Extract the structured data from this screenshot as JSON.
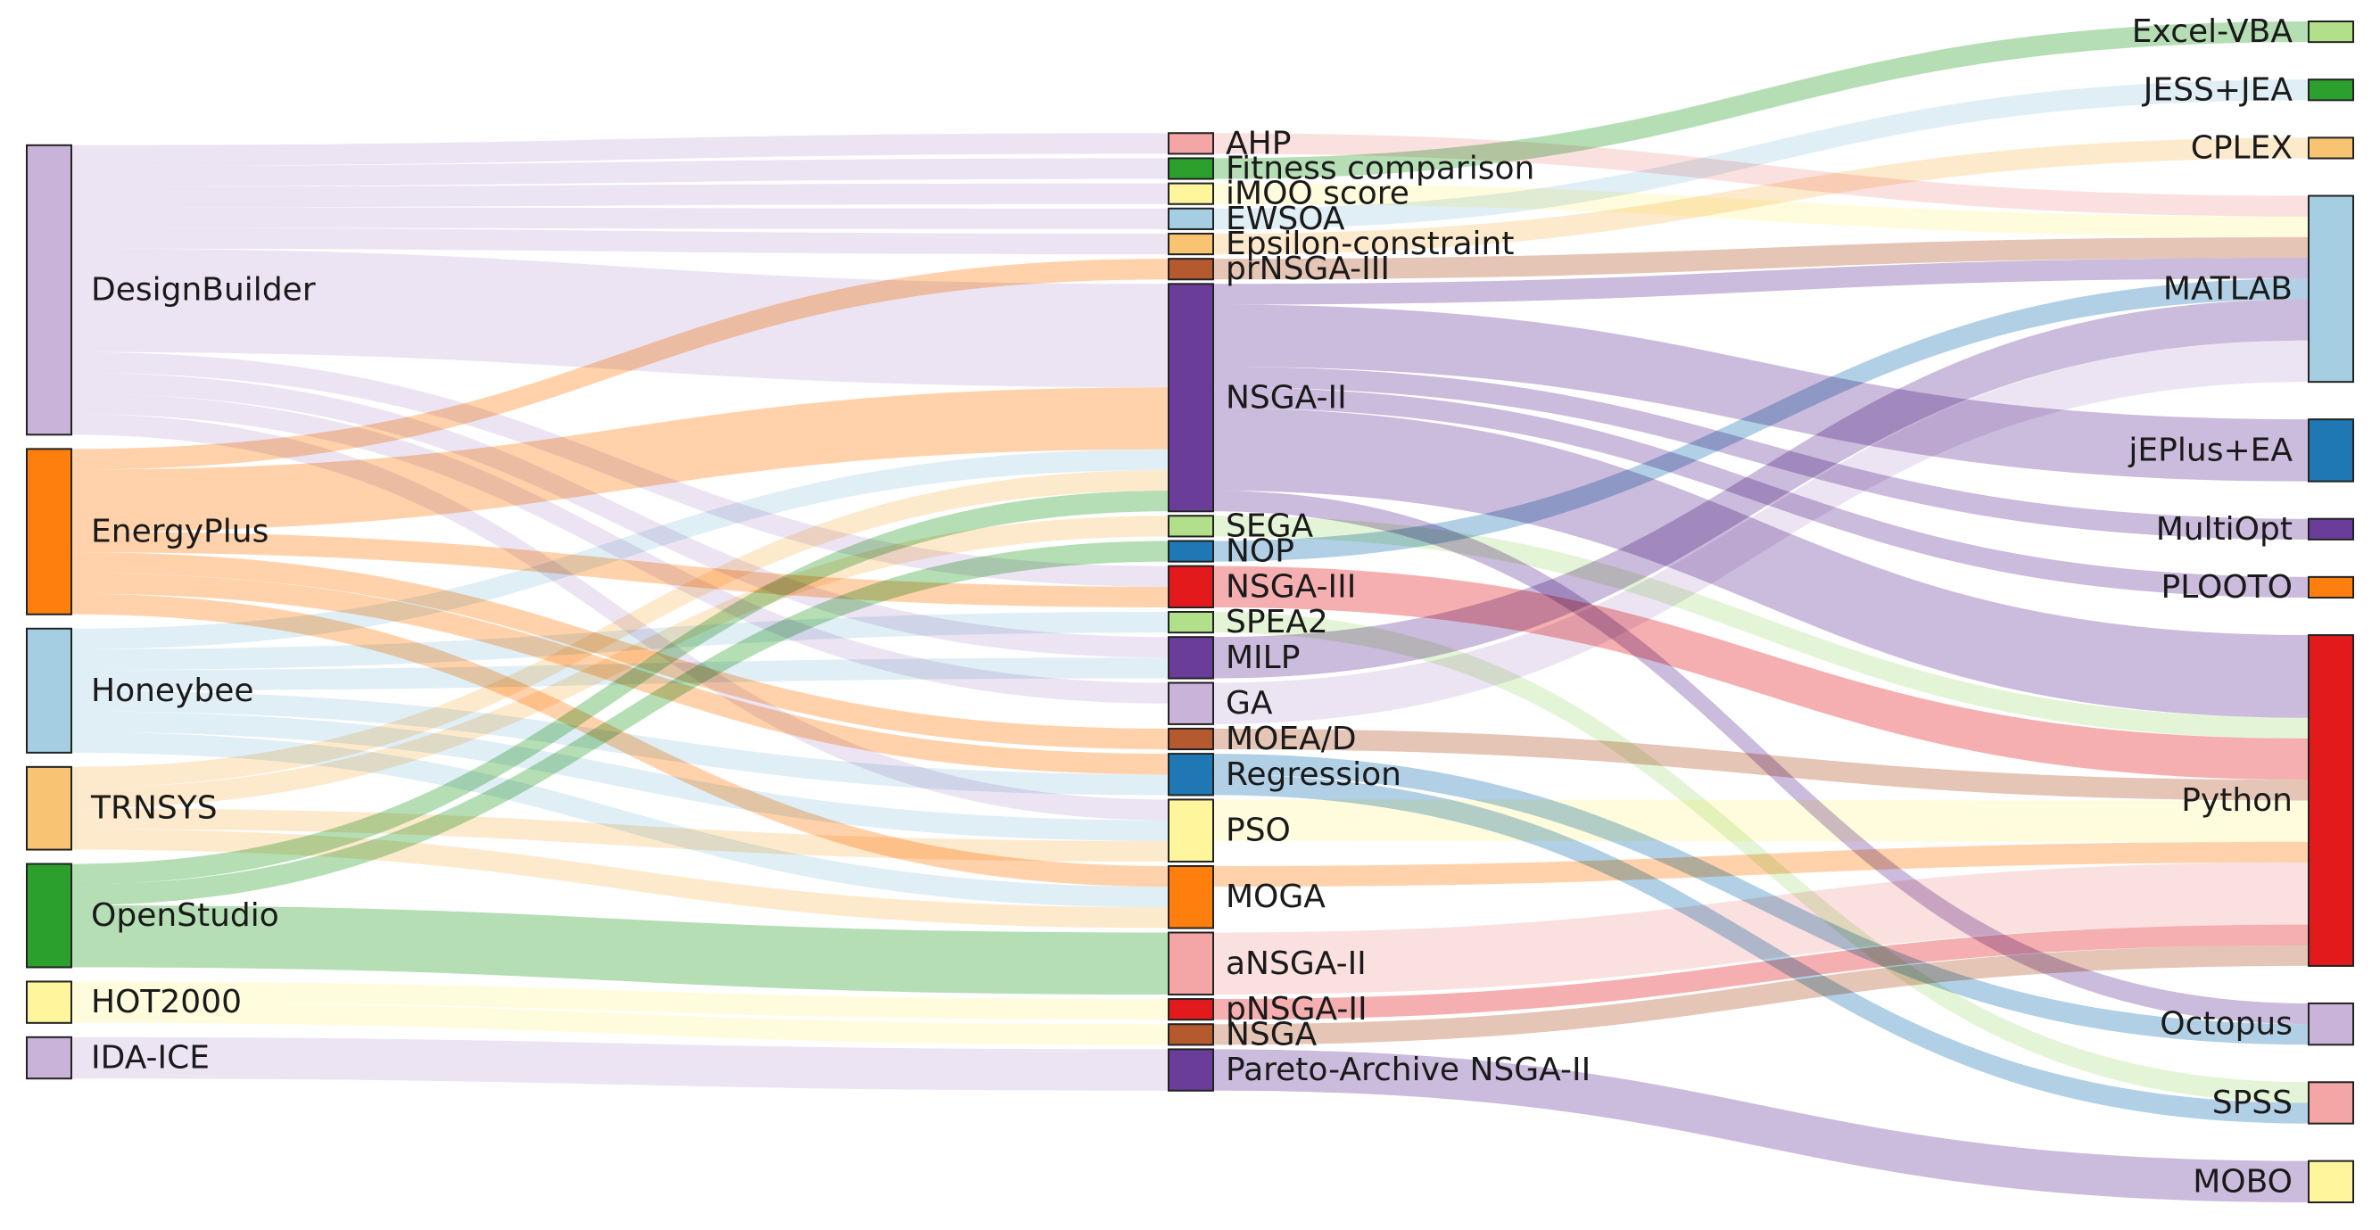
{
  "chart_data": {
    "type": "sankey",
    "columns": [
      {
        "name": "simulation-tools",
        "nodes": [
          {
            "id": "DesignBuilder",
            "label": "DesignBuilder",
            "color": "#c9b3d9"
          },
          {
            "id": "EnergyPlus",
            "label": "EnergyPlus",
            "color": "#ff7f0e"
          },
          {
            "id": "Honeybee",
            "label": "Honeybee",
            "color": "#a6cee3"
          },
          {
            "id": "TRNSYS",
            "label": "TRNSYS",
            "color": "#f8c471"
          },
          {
            "id": "OpenStudio",
            "label": "OpenStudio",
            "color": "#2ca02c"
          },
          {
            "id": "HOT2000",
            "label": "HOT2000",
            "color": "#fff59d"
          },
          {
            "id": "IDA-ICE",
            "label": "IDA-ICE",
            "color": "#c9b3d9"
          }
        ]
      },
      {
        "name": "optimization-methods",
        "nodes": [
          {
            "id": "AHP",
            "label": "AHP",
            "color": "#f4a6a6"
          },
          {
            "id": "Fitness comparison",
            "label": "Fitness comparison",
            "color": "#2ca02c"
          },
          {
            "id": "iMOO score",
            "label": "iMOO score",
            "color": "#fff59d"
          },
          {
            "id": "EWSOA",
            "label": "EWSOA",
            "color": "#a6cee3"
          },
          {
            "id": "Epsilon-constraint",
            "label": "Epsilon-constraint",
            "color": "#f8c471"
          },
          {
            "id": "prNSGA-III",
            "label": "prNSGA-III",
            "color": "#b5592e"
          },
          {
            "id": "NSGA-II",
            "label": "NSGA-II",
            "color": "#6a3d9a"
          },
          {
            "id": "SEGA",
            "label": "SEGA",
            "color": "#b2df8a"
          },
          {
            "id": "NOP",
            "label": "NOP",
            "color": "#1f78b4"
          },
          {
            "id": "NSGA-III",
            "label": "NSGA-III",
            "color": "#e31a1c"
          },
          {
            "id": "SPEA2",
            "label": "SPEA2",
            "color": "#b2df8a"
          },
          {
            "id": "MILP",
            "label": "MILP",
            "color": "#6a3d9a"
          },
          {
            "id": "GA",
            "label": "GA",
            "color": "#c9b3d9"
          },
          {
            "id": "MOEA/D",
            "label": "MOEA/D",
            "color": "#b5592e"
          },
          {
            "id": "Regression",
            "label": "Regression",
            "color": "#1f78b4"
          },
          {
            "id": "PSO",
            "label": "PSO",
            "color": "#fff59d"
          },
          {
            "id": "MOGA",
            "label": "MOGA",
            "color": "#ff7f0e"
          },
          {
            "id": "aNSGA-II",
            "label": "aNSGA-II",
            "color": "#f4a6a6"
          },
          {
            "id": "pNSGA-II",
            "label": "pNSGA-II",
            "color": "#e31a1c"
          },
          {
            "id": "NSGA",
            "label": "NSGA",
            "color": "#b5592e"
          },
          {
            "id": "Pareto-Archive NSGA-II",
            "label": "Pareto-Archive NSGA-II",
            "color": "#6a3d9a"
          }
        ]
      },
      {
        "name": "platforms",
        "nodes": [
          {
            "id": "Excel-VBA",
            "label": "Excel-VBA",
            "color": "#b2df8a"
          },
          {
            "id": "JESS+JEA",
            "label": "JESS+JEA",
            "color": "#2ca02c"
          },
          {
            "id": "CPLEX",
            "label": "CPLEX",
            "color": "#f8c471"
          },
          {
            "id": "MATLAB",
            "label": "MATLAB",
            "color": "#a6cee3"
          },
          {
            "id": "jEPlus+EA",
            "label": "jEPlus+EA",
            "color": "#1f78b4"
          },
          {
            "id": "MultiOpt",
            "label": "MultiOpt",
            "color": "#6a3d9a"
          },
          {
            "id": "PLOOTO",
            "label": "PLOOTO",
            "color": "#ff7f0e"
          },
          {
            "id": "Python",
            "label": "Python",
            "color": "#e31a1c"
          },
          {
            "id": "Octopus",
            "label": "Octopus",
            "color": "#c9b3d9"
          },
          {
            "id": "SPSS",
            "label": "SPSS",
            "color": "#f4a6a6"
          },
          {
            "id": "MOBO",
            "label": "MOBO",
            "color": "#fff59d"
          }
        ]
      }
    ],
    "links": [
      {
        "source": "DesignBuilder",
        "target": "AHP",
        "value": 1
      },
      {
        "source": "DesignBuilder",
        "target": "Fitness comparison",
        "value": 1
      },
      {
        "source": "DesignBuilder",
        "target": "iMOO score",
        "value": 1
      },
      {
        "source": "DesignBuilder",
        "target": "EWSOA",
        "value": 1
      },
      {
        "source": "DesignBuilder",
        "target": "Epsilon-constraint",
        "value": 1
      },
      {
        "source": "DesignBuilder",
        "target": "NSGA-II",
        "value": 5
      },
      {
        "source": "DesignBuilder",
        "target": "NSGA-III",
        "value": 1
      },
      {
        "source": "DesignBuilder",
        "target": "MILP",
        "value": 1
      },
      {
        "source": "DesignBuilder",
        "target": "GA",
        "value": 1
      },
      {
        "source": "DesignBuilder",
        "target": "PSO",
        "value": 1
      },
      {
        "source": "EnergyPlus",
        "target": "prNSGA-III",
        "value": 1
      },
      {
        "source": "EnergyPlus",
        "target": "NSGA-II",
        "value": 3
      },
      {
        "source": "EnergyPlus",
        "target": "NSGA-III",
        "value": 1
      },
      {
        "source": "EnergyPlus",
        "target": "MOEA/D",
        "value": 1
      },
      {
        "source": "EnergyPlus",
        "target": "Regression",
        "value": 1
      },
      {
        "source": "EnergyPlus",
        "target": "MOGA",
        "value": 1
      },
      {
        "source": "Honeybee",
        "target": "NSGA-II",
        "value": 1
      },
      {
        "source": "Honeybee",
        "target": "SPEA2",
        "value": 1
      },
      {
        "source": "Honeybee",
        "target": "MILP",
        "value": 1
      },
      {
        "source": "Honeybee",
        "target": "Regression",
        "value": 1
      },
      {
        "source": "Honeybee",
        "target": "PSO",
        "value": 1
      },
      {
        "source": "Honeybee",
        "target": "MOGA",
        "value": 1
      },
      {
        "source": "TRNSYS",
        "target": "NSGA-II",
        "value": 1
      },
      {
        "source": "TRNSYS",
        "target": "SEGA",
        "value": 1
      },
      {
        "source": "TRNSYS",
        "target": "PSO",
        "value": 1
      },
      {
        "source": "TRNSYS",
        "target": "MOGA",
        "value": 1
      },
      {
        "source": "OpenStudio",
        "target": "NSGA-II",
        "value": 1
      },
      {
        "source": "OpenStudio",
        "target": "NOP",
        "value": 1
      },
      {
        "source": "OpenStudio",
        "target": "aNSGA-II",
        "value": 3
      },
      {
        "source": "HOT2000",
        "target": "pNSGA-II",
        "value": 1
      },
      {
        "source": "HOT2000",
        "target": "NSGA",
        "value": 1
      },
      {
        "source": "IDA-ICE",
        "target": "Pareto-Archive NSGA-II",
        "value": 2
      },
      {
        "source": "AHP",
        "target": "MATLAB",
        "value": 1
      },
      {
        "source": "Fitness comparison",
        "target": "Excel-VBA",
        "value": 1
      },
      {
        "source": "iMOO score",
        "target": "MATLAB",
        "value": 1
      },
      {
        "source": "EWSOA",
        "target": "JESS+JEA",
        "value": 1
      },
      {
        "source": "Epsilon-constraint",
        "target": "CPLEX",
        "value": 1
      },
      {
        "source": "prNSGA-III",
        "target": "MATLAB",
        "value": 1
      },
      {
        "source": "NSGA-II",
        "target": "jEPlus+EA",
        "value": 3
      },
      {
        "source": "NSGA-II",
        "target": "MultiOpt",
        "value": 1
      },
      {
        "source": "NSGA-II",
        "target": "PLOOTO",
        "value": 1
      },
      {
        "source": "NSGA-II",
        "target": "Python",
        "value": 4
      },
      {
        "source": "NSGA-II",
        "target": "Octopus",
        "value": 1
      },
      {
        "source": "NSGA-II",
        "target": "MATLAB",
        "value": 1
      },
      {
        "source": "SEGA",
        "target": "Python",
        "value": 1
      },
      {
        "source": "NOP",
        "target": "MATLAB",
        "value": 1
      },
      {
        "source": "NSGA-III",
        "target": "Python",
        "value": 2
      },
      {
        "source": "SPEA2",
        "target": "SPSS",
        "value": 1
      },
      {
        "source": "MILP",
        "target": "MATLAB",
        "value": 2
      },
      {
        "source": "GA",
        "target": "MATLAB",
        "value": 2
      },
      {
        "source": "MOEA/D",
        "target": "Python",
        "value": 1
      },
      {
        "source": "Regression",
        "target": "SPSS",
        "value": 1
      },
      {
        "source": "Regression",
        "target": "Octopus",
        "value": 1
      },
      {
        "source": "PSO",
        "target": "Python",
        "value": 2
      },
      {
        "source": "MOGA",
        "target": "Python",
        "value": 1
      },
      {
        "source": "aNSGA-II",
        "target": "Python",
        "value": 3
      },
      {
        "source": "pNSGA-II",
        "target": "Python",
        "value": 1
      },
      {
        "source": "NSGA",
        "target": "Python",
        "value": 1
      },
      {
        "source": "Pareto-Archive NSGA-II",
        "target": "MOBO",
        "value": 2
      }
    ]
  }
}
